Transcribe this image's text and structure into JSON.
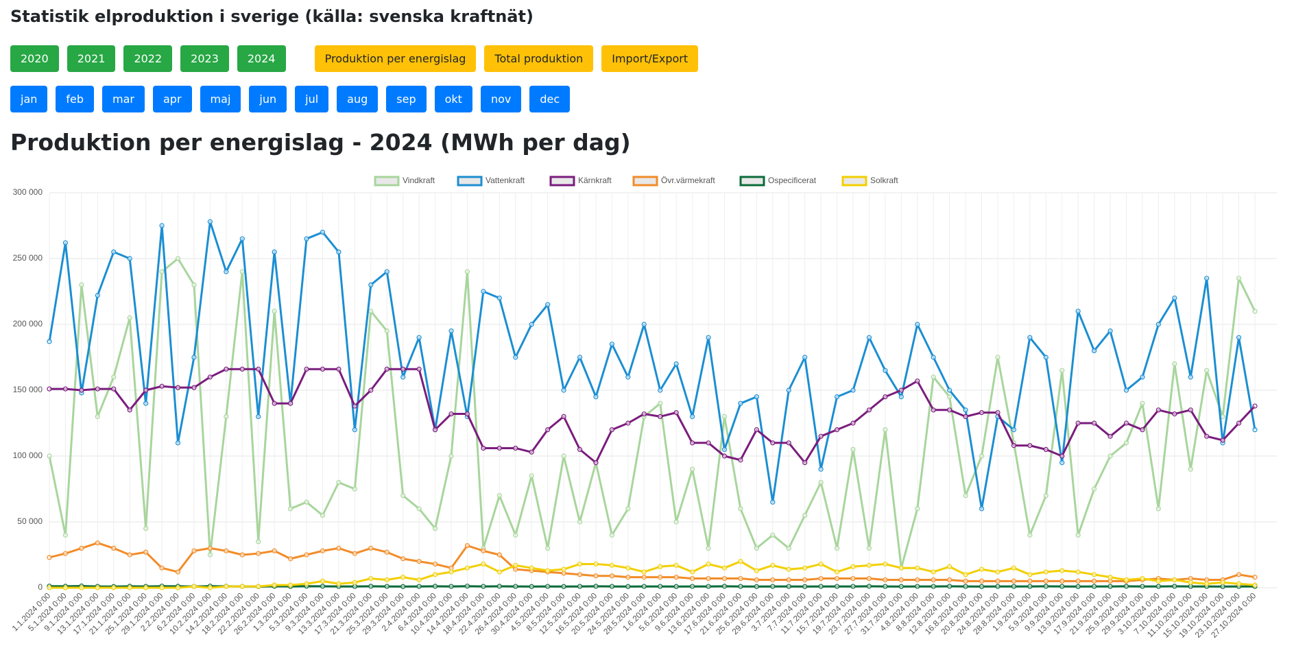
{
  "header": {
    "title": "Statistik elproduktion i sverige (källa: svenska kraftnät)"
  },
  "nav": {
    "years": [
      "2020",
      "2021",
      "2022",
      "2023",
      "2024"
    ],
    "views": [
      "Produktion per energislag",
      "Total produktion",
      "Import/Export"
    ],
    "months": [
      "jan",
      "feb",
      "mar",
      "apr",
      "maj",
      "jun",
      "jul",
      "aug",
      "sep",
      "okt",
      "nov",
      "dec"
    ]
  },
  "chart_data": {
    "type": "line",
    "title": "Produktion per energislag - 2024 (MWh per dag)",
    "categories": [
      "1.1.2024 0:00",
      "5.1.2024 0:00",
      "9.1.2024 0:00",
      "13.1.2024 0:00",
      "17.1.2024 0:00",
      "21.1.2024 0:00",
      "25.1.2024 0:00",
      "29.1.2024 0:00",
      "2.2.2024 0:00",
      "6.2.2024 0:00",
      "10.2.2024 0:00",
      "14.2.2024 0:00",
      "18.2.2024 0:00",
      "22.2.2024 0:00",
      "26.2.2024 0:00",
      "1.3.2024 0:00",
      "5.3.2024 0:00",
      "9.3.2024 0:00",
      "13.3.2024 0:00",
      "17.3.2024 0:00",
      "21.3.2024 0:00",
      "25.3.2024 0:00",
      "29.3.2024 0:00",
      "2.4.2024 0:00",
      "6.4.2024 0:00",
      "10.4.2024 0:00",
      "14.4.2024 0:00",
      "18.4.2024 0:00",
      "22.4.2024 0:00",
      "26.4.2024 0:00",
      "30.4.2024 0:00",
      "4.5.2024 0:00",
      "8.5.2024 0:00",
      "12.5.2024 0:00",
      "16.5.2024 0:00",
      "20.5.2024 0:00",
      "24.5.2024 0:00",
      "28.5.2024 0:00",
      "1.6.2024 0:00",
      "5.6.2024 0:00",
      "9.6.2024 0:00",
      "13.6.2024 0:00",
      "17.6.2024 0:00",
      "21.6.2024 0:00",
      "25.6.2024 0:00",
      "29.6.2024 0:00",
      "3.7.2024 0:00",
      "7.7.2024 0:00",
      "11.7.2024 0:00",
      "15.7.2024 0:00",
      "19.7.2024 0:00",
      "23.7.2024 0:00",
      "27.7.2024 0:00",
      "31.7.2024 0:00",
      "4.8.2024 0:00",
      "8.8.2024 0:00",
      "12.8.2024 0:00",
      "16.8.2024 0:00",
      "20.8.2024 0:00",
      "24.8.2024 0:00",
      "28.8.2024 0:00",
      "1.9.2024 0:00",
      "5.9.2024 0:00",
      "9.9.2024 0:00",
      "13.9.2024 0:00",
      "17.9.2024 0:00",
      "21.9.2024 0:00",
      "25.9.2024 0:00",
      "29.9.2024 0:00",
      "3.10.2024 0:00",
      "7.10.2024 0:00",
      "11.10.2024 0:00",
      "15.10.2024 0:00",
      "19.10.2024 0:00",
      "23.10.2024 0:00",
      "27.10.2024 0:00"
    ],
    "series": [
      {
        "name": "Vindkraft",
        "color": "#a8d59c",
        "values": [
          100000,
          40000,
          230000,
          130000,
          160000,
          205000,
          45000,
          240000,
          250000,
          230000,
          25000,
          130000,
          240000,
          35000,
          210000,
          60000,
          65000,
          55000,
          80000,
          75000,
          210000,
          195000,
          70000,
          60000,
          45000,
          100000,
          240000,
          30000,
          70000,
          40000,
          85000,
          30000,
          100000,
          50000,
          95000,
          40000,
          60000,
          130000,
          140000,
          50000,
          90000,
          30000,
          130000,
          60000,
          30000,
          40000,
          30000,
          55000,
          80000,
          30000,
          105000,
          30000,
          120000,
          15000,
          60000,
          160000,
          145000,
          70000,
          100000,
          175000,
          110000,
          40000,
          70000,
          165000,
          40000,
          75000,
          100000,
          110000,
          140000,
          60000,
          170000,
          90000,
          165000,
          130000,
          235000,
          210000
        ]
      },
      {
        "name": "Vattenkraft",
        "color": "#1b8ed2",
        "values": [
          187000,
          262000,
          148000,
          222000,
          255000,
          250000,
          140000,
          275000,
          110000,
          175000,
          278000,
          240000,
          265000,
          130000,
          255000,
          140000,
          265000,
          270000,
          255000,
          120000,
          230000,
          240000,
          160000,
          190000,
          120000,
          195000,
          130000,
          225000,
          220000,
          175000,
          200000,
          215000,
          150000,
          175000,
          145000,
          185000,
          160000,
          200000,
          150000,
          170000,
          130000,
          190000,
          105000,
          140000,
          145000,
          65000,
          150000,
          175000,
          90000,
          145000,
          150000,
          190000,
          165000,
          145000,
          200000,
          175000,
          150000,
          135000,
          60000,
          130000,
          120000,
          190000,
          175000,
          95000,
          210000,
          180000,
          195000,
          150000,
          160000,
          200000,
          220000,
          160000,
          235000,
          110000,
          190000,
          120000
        ]
      },
      {
        "name": "Kärnkraft",
        "color": "#7a1c7d",
        "values": [
          151000,
          151000,
          150000,
          151000,
          151000,
          135000,
          150000,
          153000,
          152000,
          152000,
          160000,
          166000,
          166000,
          166000,
          140000,
          140000,
          166000,
          166000,
          166000,
          138000,
          150000,
          166000,
          166000,
          166000,
          120000,
          132000,
          132000,
          106000,
          106000,
          106000,
          103000,
          120000,
          130000,
          105000,
          95000,
          120000,
          125000,
          132000,
          130000,
          133000,
          110000,
          110000,
          100000,
          97000,
          120000,
          110000,
          110000,
          95000,
          115000,
          120000,
          125000,
          135000,
          145000,
          150000,
          157000,
          135000,
          135000,
          130000,
          133000,
          133000,
          108000,
          108000,
          105000,
          100000,
          125000,
          125000,
          115000,
          125000,
          120000,
          135000,
          132000,
          135000,
          115000,
          112000,
          125000,
          138000
        ]
      },
      {
        "name": "Övr.värmekraft",
        "color": "#f28c28",
        "values": [
          23000,
          26000,
          30000,
          34000,
          30000,
          25000,
          27000,
          15000,
          12000,
          28000,
          30000,
          28000,
          25000,
          26000,
          28000,
          22000,
          25000,
          28000,
          30000,
          26000,
          30000,
          27000,
          22000,
          20000,
          18000,
          15000,
          32000,
          28000,
          25000,
          14000,
          13000,
          12000,
          11000,
          10000,
          9000,
          9000,
          8000,
          8000,
          8000,
          8000,
          7000,
          7000,
          7000,
          7000,
          6000,
          6000,
          6000,
          6000,
          7000,
          7000,
          7000,
          7000,
          6000,
          6000,
          6000,
          6000,
          6000,
          5000,
          5000,
          5000,
          5000,
          5000,
          5000,
          5000,
          5000,
          5000,
          5000,
          5000,
          6000,
          7000,
          6000,
          7000,
          6000,
          6000,
          10000,
          8000
        ]
      },
      {
        "name": "Ospecificerat",
        "color": "#0b6b3a",
        "values": [
          1200,
          1100,
          1300,
          1000,
          900,
          1100,
          1000,
          1200,
          1100,
          1000,
          1200,
          1100,
          1000,
          900,
          1100,
          1000,
          1200,
          1100,
          1000,
          1000,
          1100,
          1000,
          900,
          1000,
          1100,
          1000,
          1200,
          1000,
          1100,
          1000,
          900,
          1000,
          900,
          1000,
          1100,
          1000,
          900,
          1000,
          1000,
          900,
          1000,
          1000,
          1100,
          1000,
          900,
          1000,
          1000,
          900,
          1000,
          1000,
          1000,
          1100,
          1000,
          900,
          1000,
          1000,
          1100,
          1000,
          900,
          1000,
          1000,
          1000,
          1100,
          1000,
          900,
          1000,
          1000,
          1100,
          1000,
          1000,
          1100,
          1000,
          1000,
          900,
          1000,
          1000
        ]
      },
      {
        "name": "Solkraft",
        "color": "#f2cf00",
        "values": [
          0,
          0,
          0,
          0,
          0,
          0,
          0,
          0,
          0,
          1000,
          0,
          1000,
          1000,
          1000,
          2000,
          2000,
          3000,
          5000,
          3000,
          4000,
          7000,
          6000,
          8000,
          6000,
          10000,
          12000,
          15000,
          18000,
          12000,
          17000,
          15000,
          13000,
          14000,
          18000,
          18000,
          17000,
          15000,
          12000,
          16000,
          17000,
          12000,
          18000,
          15000,
          20000,
          13000,
          17000,
          14000,
          15000,
          18000,
          12000,
          16000,
          17000,
          18000,
          15000,
          15000,
          12000,
          16000,
          10000,
          14000,
          12000,
          15000,
          10000,
          12000,
          13000,
          12000,
          10000,
          8000,
          6000,
          7000,
          5000,
          6000,
          4000,
          3000,
          4000,
          3000,
          2000
        ]
      }
    ],
    "ylim": [
      0,
      300000
    ],
    "yticks": [
      0,
      {
        "value": 50000,
        "label": "50 000"
      },
      {
        "value": 100000,
        "label": "100 000"
      },
      {
        "value": 150000,
        "label": "150 000"
      },
      {
        "value": 200000,
        "label": "200 000"
      },
      {
        "value": 250000,
        "label": "250 000"
      },
      {
        "value": 300000,
        "label": "300 000"
      }
    ],
    "grid": true
  }
}
